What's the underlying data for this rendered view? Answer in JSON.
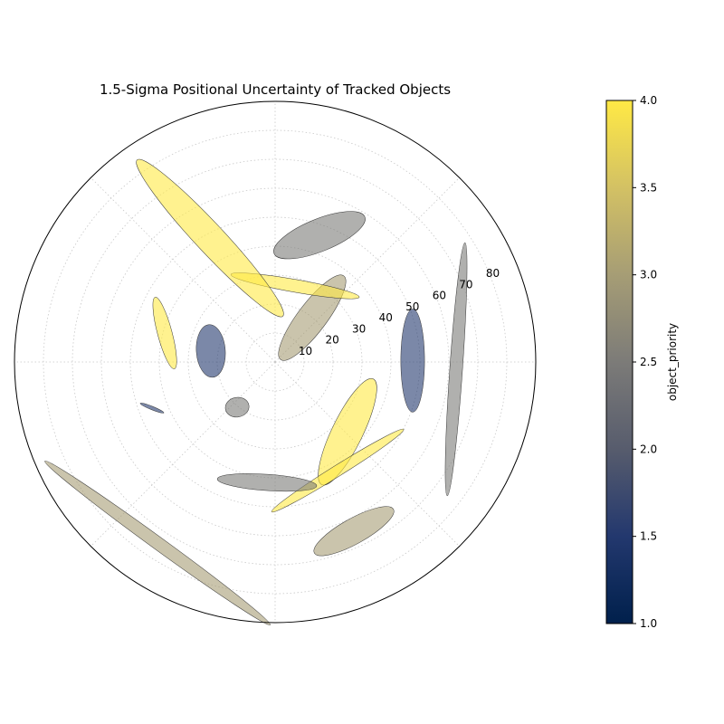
{
  "chart_data": {
    "type": "polar-ellipse",
    "title": "1.5-Sigma Positional Uncertainty of Tracked Objects",
    "r_ticks": [
      10,
      20,
      30,
      40,
      50,
      60,
      70,
      80
    ],
    "r_max": 90,
    "theta_grid_deg": [
      0,
      45,
      90,
      135,
      180,
      225,
      270,
      315
    ],
    "grid": true,
    "colorbar": {
      "label": "object_priority",
      "min": 1.0,
      "max": 4.0,
      "ticks": [
        "1.0",
        "1.5",
        "2.0",
        "2.5",
        "3.0",
        "3.5",
        "4.0"
      ]
    },
    "objects": [
      {
        "x": 47.5,
        "y": 0.5,
        "rx": 4.1,
        "ry": 17.8,
        "angle_deg": 0,
        "priority": 1.5
      },
      {
        "x": 62.5,
        "y": -2.5,
        "rx": 2.2,
        "ry": 43.8,
        "angle_deg": -4,
        "priority": 2.5
      },
      {
        "x": 15.3,
        "y": 43.8,
        "rx": 16.9,
        "ry": 5.6,
        "angle_deg": 22,
        "priority": 2.5
      },
      {
        "x": 12.8,
        "y": 15.3,
        "rx": 18.1,
        "ry": 5.0,
        "angle_deg": 53,
        "priority": 3.0
      },
      {
        "x": 6.9,
        "y": 26.3,
        "rx": 22.5,
        "ry": 2.2,
        "angle_deg": -10,
        "priority": 4.0
      },
      {
        "x": -22.5,
        "y": 42.8,
        "rx": 36.9,
        "ry": 5.0,
        "angle_deg": -47,
        "priority": 4.0
      },
      {
        "x": -38.1,
        "y": 10.0,
        "rx": 12.8,
        "ry": 2.5,
        "angle_deg": -75,
        "priority": 4.0
      },
      {
        "x": -22.2,
        "y": 3.8,
        "rx": 5.0,
        "ry": 9.1,
        "angle_deg": 4,
        "priority": 1.5
      },
      {
        "x": -13.1,
        "y": -15.6,
        "rx": 4.1,
        "ry": 3.4,
        "angle_deg": 10,
        "priority": 2.5
      },
      {
        "x": -42.5,
        "y": -15.9,
        "rx": 4.4,
        "ry": 0.6,
        "angle_deg": -22,
        "priority": 1.5
      },
      {
        "x": 25.0,
        "y": -24.1,
        "rx": 20.3,
        "ry": 5.3,
        "angle_deg": 64,
        "priority": 4.0
      },
      {
        "x": 21.6,
        "y": -37.5,
        "rx": 26.9,
        "ry": 1.9,
        "angle_deg": 32,
        "priority": 4.0
      },
      {
        "x": -2.8,
        "y": -41.6,
        "rx": 17.2,
        "ry": 2.8,
        "angle_deg": -4,
        "priority": 2.5
      },
      {
        "x": 27.2,
        "y": -58.4,
        "rx": 15.6,
        "ry": 4.4,
        "angle_deg": 29,
        "priority": 3.0
      },
      {
        "x": -40.6,
        "y": -62.5,
        "rx": 48.1,
        "ry": 2.2,
        "angle_deg": -36,
        "priority": 3.0
      }
    ]
  }
}
